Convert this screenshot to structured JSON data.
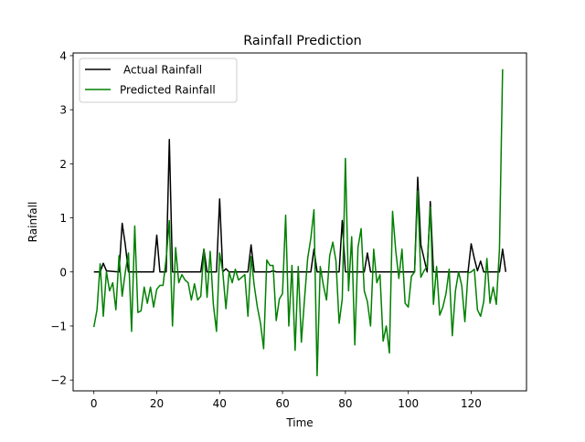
{
  "chart_data": {
    "type": "line",
    "title": "Rainfall Prediction",
    "xlabel": "Time",
    "ylabel": "Rainfall",
    "xlim": [
      -6.6,
      137.6
    ],
    "ylim": [
      -2.2,
      4.05
    ],
    "xticks": [
      0,
      20,
      40,
      60,
      80,
      100,
      120
    ],
    "yticks": [
      -2,
      -1,
      0,
      1,
      2,
      3,
      4
    ],
    "grid": false,
    "legend_position": "top-left",
    "series": [
      {
        "name": "Actual Rainfall",
        "color": "#000000",
        "points": [
          [
            0,
            0
          ],
          [
            2,
            0
          ],
          [
            3,
            0.16
          ],
          [
            4,
            0.02
          ],
          [
            8,
            0
          ],
          [
            9,
            0.9
          ],
          [
            10,
            0.5
          ],
          [
            11,
            0
          ],
          [
            19,
            0
          ],
          [
            20,
            0.68
          ],
          [
            21,
            0
          ],
          [
            23,
            0
          ],
          [
            24,
            2.45
          ],
          [
            25,
            0
          ],
          [
            34,
            0
          ],
          [
            35,
            0.42
          ],
          [
            36,
            0
          ],
          [
            39,
            0
          ],
          [
            40,
            1.35
          ],
          [
            41,
            0
          ],
          [
            42,
            0.06
          ],
          [
            43,
            0
          ],
          [
            49,
            0
          ],
          [
            50,
            0.5
          ],
          [
            51,
            0
          ],
          [
            56,
            0
          ],
          [
            57,
            0.02
          ],
          [
            58,
            0
          ],
          [
            69,
            0
          ],
          [
            70,
            0.42
          ],
          [
            71,
            0
          ],
          [
            78,
            0
          ],
          [
            79,
            0.95
          ],
          [
            80,
            0
          ],
          [
            86,
            0
          ],
          [
            87,
            0.35
          ],
          [
            88,
            0
          ],
          [
            102,
            0
          ],
          [
            103,
            1.75
          ],
          [
            104,
            0.5
          ],
          [
            106,
            0
          ],
          [
            107,
            1.3
          ],
          [
            108,
            0
          ],
          [
            119,
            0
          ],
          [
            120,
            0.52
          ],
          [
            121,
            0.25
          ],
          [
            122,
            0.02
          ],
          [
            123,
            0.2
          ],
          [
            124,
            0
          ],
          [
            129,
            0
          ],
          [
            130,
            0.42
          ],
          [
            131,
            0
          ]
        ]
      },
      {
        "name": "Predicted Rainfall",
        "color": "#008000",
        "points": [
          [
            0,
            -1.02
          ],
          [
            1,
            -0.7
          ],
          [
            2,
            0.15
          ],
          [
            3,
            -0.82
          ],
          [
            4,
            0
          ],
          [
            5,
            -0.35
          ],
          [
            6,
            -0.2
          ],
          [
            7,
            -0.7
          ],
          [
            8,
            0.3
          ],
          [
            9,
            -0.45
          ],
          [
            10,
            0
          ],
          [
            11,
            0.35
          ],
          [
            12,
            -1.1
          ],
          [
            13,
            0.85
          ],
          [
            14,
            -0.75
          ],
          [
            15,
            -0.72
          ],
          [
            16,
            -0.28
          ],
          [
            17,
            -0.58
          ],
          [
            18,
            -0.28
          ],
          [
            19,
            -0.65
          ],
          [
            20,
            -0.32
          ],
          [
            21,
            -0.25
          ],
          [
            22,
            -0.25
          ],
          [
            23,
            0.25
          ],
          [
            24,
            0.95
          ],
          [
            25,
            -1.0
          ],
          [
            26,
            0.45
          ],
          [
            27,
            -0.2
          ],
          [
            28,
            -0.05
          ],
          [
            29,
            -0.15
          ],
          [
            30,
            -0.2
          ],
          [
            31,
            -0.52
          ],
          [
            32,
            -0.22
          ],
          [
            33,
            -0.52
          ],
          [
            34,
            -0.45
          ],
          [
            35,
            0.42
          ],
          [
            36,
            -0.47
          ],
          [
            37,
            0.38
          ],
          [
            38,
            -0.6
          ],
          [
            39,
            -1.1
          ],
          [
            40,
            0.35
          ],
          [
            41,
            0
          ],
          [
            42,
            -0.68
          ],
          [
            43,
            0
          ],
          [
            44,
            -0.2
          ],
          [
            45,
            0.05
          ],
          [
            46,
            -0.15
          ],
          [
            47,
            -0.1
          ],
          [
            48,
            -0.05
          ],
          [
            49,
            -0.82
          ],
          [
            50,
            0.28
          ],
          [
            51,
            -0.25
          ],
          [
            52,
            -0.65
          ],
          [
            53,
            -0.95
          ],
          [
            54,
            -1.42
          ],
          [
            55,
            0.22
          ],
          [
            56,
            0.12
          ],
          [
            57,
            0.12
          ],
          [
            58,
            -0.9
          ],
          [
            59,
            -0.5
          ],
          [
            60,
            -0.4
          ],
          [
            61,
            1.05
          ],
          [
            62,
            -1.0
          ],
          [
            63,
            0.12
          ],
          [
            64,
            -1.45
          ],
          [
            65,
            0.1
          ],
          [
            66,
            -1.3
          ],
          [
            67,
            -0.5
          ],
          [
            68,
            0.25
          ],
          [
            69,
            0.62
          ],
          [
            70,
            1.15
          ],
          [
            71,
            -1.92
          ],
          [
            72,
            0.1
          ],
          [
            73,
            -0.25
          ],
          [
            74,
            -0.52
          ],
          [
            75,
            0.3
          ],
          [
            76,
            0.55
          ],
          [
            77,
            0.2
          ],
          [
            78,
            -0.95
          ],
          [
            79,
            -0.5
          ],
          [
            80,
            2.1
          ],
          [
            81,
            -0.35
          ],
          [
            82,
            0.65
          ],
          [
            83,
            -1.35
          ],
          [
            84,
            0.45
          ],
          [
            85,
            0.8
          ],
          [
            86,
            -0.35
          ],
          [
            87,
            -0.55
          ],
          [
            88,
            -1.0
          ],
          [
            89,
            0.42
          ],
          [
            90,
            -0.2
          ],
          [
            91,
            -0.05
          ],
          [
            92,
            -1.28
          ],
          [
            93,
            -1.0
          ],
          [
            94,
            -1.5
          ],
          [
            95,
            1.12
          ],
          [
            96,
            0.4
          ],
          [
            97,
            -0.12
          ],
          [
            98,
            0.42
          ],
          [
            99,
            -0.58
          ],
          [
            100,
            -0.65
          ],
          [
            101,
            -0.08
          ],
          [
            102,
            0.0
          ],
          [
            103,
            1.5
          ],
          [
            104,
            -0.1
          ],
          [
            105,
            0.02
          ],
          [
            106,
            0.1
          ],
          [
            107,
            1.2
          ],
          [
            108,
            -0.6
          ],
          [
            109,
            0.1
          ],
          [
            110,
            -0.8
          ],
          [
            111,
            -0.65
          ],
          [
            112,
            -0.4
          ],
          [
            113,
            0.05
          ],
          [
            114,
            -1.18
          ],
          [
            115,
            -0.35
          ],
          [
            116,
            0.0
          ],
          [
            117,
            -0.25
          ],
          [
            118,
            -0.92
          ],
          [
            119,
            -0.02
          ],
          [
            120,
            0.0
          ],
          [
            121,
            0.05
          ],
          [
            122,
            -0.7
          ],
          [
            123,
            -0.82
          ],
          [
            124,
            -0.55
          ],
          [
            125,
            0.25
          ],
          [
            126,
            -0.58
          ],
          [
            127,
            -0.28
          ],
          [
            128,
            -0.6
          ],
          [
            129,
            0.42
          ],
          [
            130,
            3.75
          ]
        ]
      }
    ]
  }
}
